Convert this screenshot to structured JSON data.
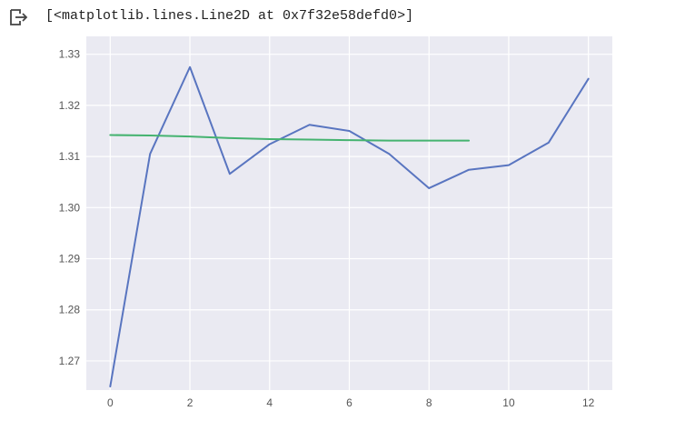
{
  "output": {
    "icon": "output-arrow-icon",
    "text": "[<matplotlib.lines.Line2D at 0x7f32e58defd0>]"
  },
  "chart_data": {
    "type": "line",
    "title": "",
    "xlabel": "",
    "ylabel": "",
    "xlim": [
      -0.6,
      12.6
    ],
    "ylim": [
      1.2643,
      1.3335
    ],
    "grid": true,
    "legend": "none",
    "background": "#eaeaf2",
    "xticks": [
      0,
      2,
      4,
      6,
      8,
      10,
      12
    ],
    "xtick_labels": [
      "0",
      "2",
      "4",
      "6",
      "8",
      "10",
      "12"
    ],
    "yticks": [
      1.27,
      1.28,
      1.29,
      1.3,
      1.31,
      1.32,
      1.33
    ],
    "ytick_labels": [
      "1.27",
      "1.28",
      "1.29",
      "1.30",
      "1.31",
      "1.32",
      "1.33"
    ],
    "series": [
      {
        "color": "#5975c0",
        "x": [
          0,
          1,
          2,
          3,
          4,
          5,
          6,
          7,
          8,
          9,
          10,
          11,
          12
        ],
        "y": [
          1.265,
          1.3105,
          1.3275,
          1.3066,
          1.3124,
          1.3162,
          1.315,
          1.3105,
          1.3038,
          1.3074,
          1.3083,
          1.3127,
          1.3252
        ]
      },
      {
        "color": "#45b370",
        "x": [
          0,
          1,
          2,
          3,
          4,
          5,
          6,
          7,
          8,
          9
        ],
        "y": [
          1.3142,
          1.3141,
          1.3139,
          1.3136,
          1.3134,
          1.3133,
          1.3132,
          1.3131,
          1.3131,
          1.3131
        ]
      }
    ]
  }
}
